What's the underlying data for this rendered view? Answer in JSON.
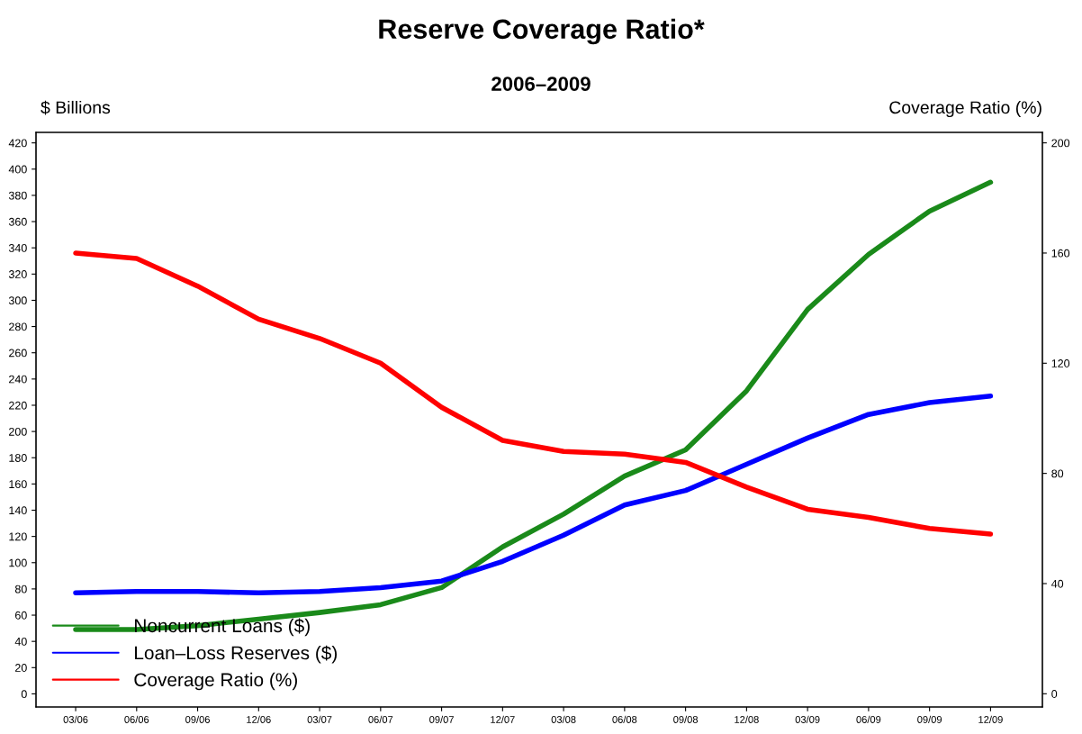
{
  "chart_data": {
    "type": "line",
    "title": "Reserve Coverage Ratio*",
    "subtitle": "2006–2009",
    "ylabel": "$ Billions",
    "y2label": "Coverage Ratio (%)",
    "categories": [
      "03/06",
      "06/06",
      "09/06",
      "12/06",
      "03/07",
      "06/07",
      "09/07",
      "12/07",
      "03/08",
      "06/08",
      "09/08",
      "12/08",
      "03/09",
      "06/09",
      "09/09",
      "12/09"
    ],
    "series": [
      {
        "name": "Noncurrent Loans ($)",
        "color": "#1a8a1a",
        "values": [
          49,
          49,
          52,
          57,
          62,
          68,
          81,
          112,
          137,
          166,
          186,
          231,
          293,
          335,
          368,
          390
        ]
      },
      {
        "name": "Loan–Loss Reserves ($)",
        "color": "#0000ff",
        "values": [
          77,
          78,
          78,
          77,
          78,
          81,
          86,
          101,
          121,
          144,
          155,
          175,
          195,
          213,
          222,
          227
        ]
      },
      {
        "name": "Coverage Ratio (%)",
        "color": "#ff0000",
        "axis": "y2",
        "values": [
          160,
          158,
          148,
          136,
          129,
          120,
          104,
          92,
          88,
          87,
          84,
          75,
          67,
          64,
          60,
          58
        ]
      }
    ],
    "ylim": [
      -10,
      428
    ],
    "yticks": [
      0,
      20,
      40,
      60,
      80,
      100,
      120,
      140,
      160,
      180,
      200,
      220,
      240,
      260,
      280,
      300,
      320,
      340,
      360,
      380,
      400,
      420
    ],
    "y2lim": [
      -4.8,
      203.8
    ],
    "y2ticks": [
      0,
      40,
      80,
      120,
      160,
      200
    ],
    "legend": "bottom left",
    "grid": false,
    "marker": "none",
    "line_style": "solid"
  }
}
